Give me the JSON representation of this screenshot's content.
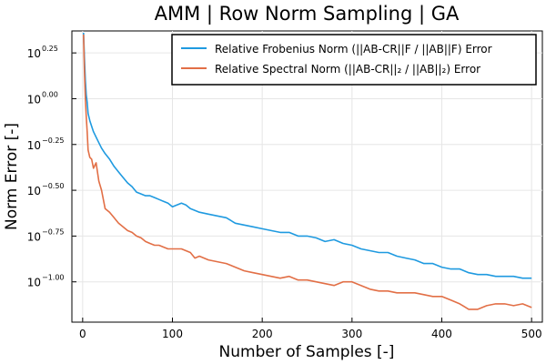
{
  "chart_data": {
    "type": "line",
    "title": "AMM | Row Norm Sampling | GA",
    "xlabel": "Number of Samples [-]",
    "ylabel": "Norm Error [-]",
    "xlim": [
      -12,
      512
    ],
    "ylim_log10": [
      -1.22,
      0.37
    ],
    "yscale": "log10",
    "grid": true,
    "legend_position": "top-right",
    "x_ticks": [
      0,
      100,
      200,
      300,
      400,
      500
    ],
    "x_tick_labels": [
      "0",
      "100",
      "200",
      "300",
      "400",
      "500"
    ],
    "y_ticks_log10": [
      0.25,
      0.0,
      -0.25,
      -0.5,
      -0.75,
      -1.0
    ],
    "y_tick_base": "10",
    "y_tick_exponents": [
      "0.25",
      "0.00",
      "−0.25",
      "−0.50",
      "−0.75",
      "−1.00"
    ],
    "series": [
      {
        "name": "Relative Frobenius Norm (||AB-CR||F / ||AB||F) Error",
        "color": "#1f9ae0",
        "x": [
          1,
          2,
          3,
          4,
          5,
          6,
          8,
          10,
          12,
          15,
          18,
          21,
          25,
          30,
          35,
          40,
          45,
          50,
          55,
          60,
          65,
          70,
          75,
          80,
          85,
          90,
          95,
          100,
          105,
          110,
          115,
          120,
          125,
          130,
          140,
          150,
          160,
          170,
          180,
          190,
          200,
          210,
          220,
          230,
          240,
          250,
          260,
          270,
          280,
          290,
          300,
          310,
          320,
          330,
          340,
          350,
          360,
          370,
          380,
          390,
          400,
          410,
          420,
          430,
          440,
          450,
          460,
          470,
          480,
          490,
          500
        ],
        "y_log10": [
          0.36,
          0.22,
          0.1,
          0.02,
          -0.02,
          -0.08,
          -0.12,
          -0.15,
          -0.18,
          -0.21,
          -0.24,
          -0.27,
          -0.3,
          -0.33,
          -0.37,
          -0.4,
          -0.43,
          -0.46,
          -0.48,
          -0.51,
          -0.52,
          -0.53,
          -0.53,
          -0.54,
          -0.55,
          -0.56,
          -0.57,
          -0.59,
          -0.58,
          -0.57,
          -0.58,
          -0.6,
          -0.61,
          -0.62,
          -0.63,
          -0.64,
          -0.65,
          -0.68,
          -0.69,
          -0.7,
          -0.71,
          -0.72,
          -0.73,
          -0.73,
          -0.75,
          -0.75,
          -0.76,
          -0.78,
          -0.77,
          -0.79,
          -0.8,
          -0.82,
          -0.83,
          -0.84,
          -0.84,
          -0.86,
          -0.87,
          -0.88,
          -0.9,
          -0.9,
          -0.92,
          -0.93,
          -0.93,
          -0.95,
          -0.96,
          -0.96,
          -0.97,
          -0.97,
          -0.97,
          -0.98,
          -0.98
        ]
      },
      {
        "name": "Relative Spectral Norm (||AB-CR||₂ / ||AB||₂) Error",
        "color": "#e26f46",
        "x": [
          1,
          2,
          3,
          4,
          5,
          6,
          8,
          10,
          12,
          15,
          18,
          21,
          25,
          30,
          35,
          40,
          45,
          50,
          55,
          60,
          65,
          70,
          75,
          80,
          85,
          90,
          95,
          100,
          105,
          110,
          115,
          120,
          125,
          130,
          140,
          150,
          160,
          170,
          180,
          190,
          200,
          210,
          220,
          230,
          240,
          250,
          260,
          270,
          280,
          290,
          300,
          310,
          320,
          330,
          340,
          350,
          360,
          370,
          380,
          390,
          400,
          410,
          420,
          430,
          440,
          450,
          460,
          470,
          480,
          490,
          500
        ],
        "y_log10": [
          0.35,
          0.15,
          0.0,
          -0.1,
          -0.18,
          -0.28,
          -0.32,
          -0.33,
          -0.38,
          -0.35,
          -0.45,
          -0.5,
          -0.6,
          -0.62,
          -0.65,
          -0.68,
          -0.7,
          -0.72,
          -0.73,
          -0.75,
          -0.76,
          -0.78,
          -0.79,
          -0.8,
          -0.8,
          -0.81,
          -0.82,
          -0.82,
          -0.82,
          -0.82,
          -0.83,
          -0.84,
          -0.87,
          -0.86,
          -0.88,
          -0.89,
          -0.9,
          -0.92,
          -0.94,
          -0.95,
          -0.96,
          -0.97,
          -0.98,
          -0.97,
          -0.99,
          -0.99,
          -1.0,
          -1.01,
          -1.02,
          -1.0,
          -1.0,
          -1.02,
          -1.04,
          -1.05,
          -1.05,
          -1.06,
          -1.06,
          -1.06,
          -1.07,
          -1.08,
          -1.08,
          -1.1,
          -1.12,
          -1.15,
          -1.15,
          -1.13,
          -1.12,
          -1.12,
          -1.13,
          -1.12,
          -1.14
        ]
      }
    ]
  }
}
